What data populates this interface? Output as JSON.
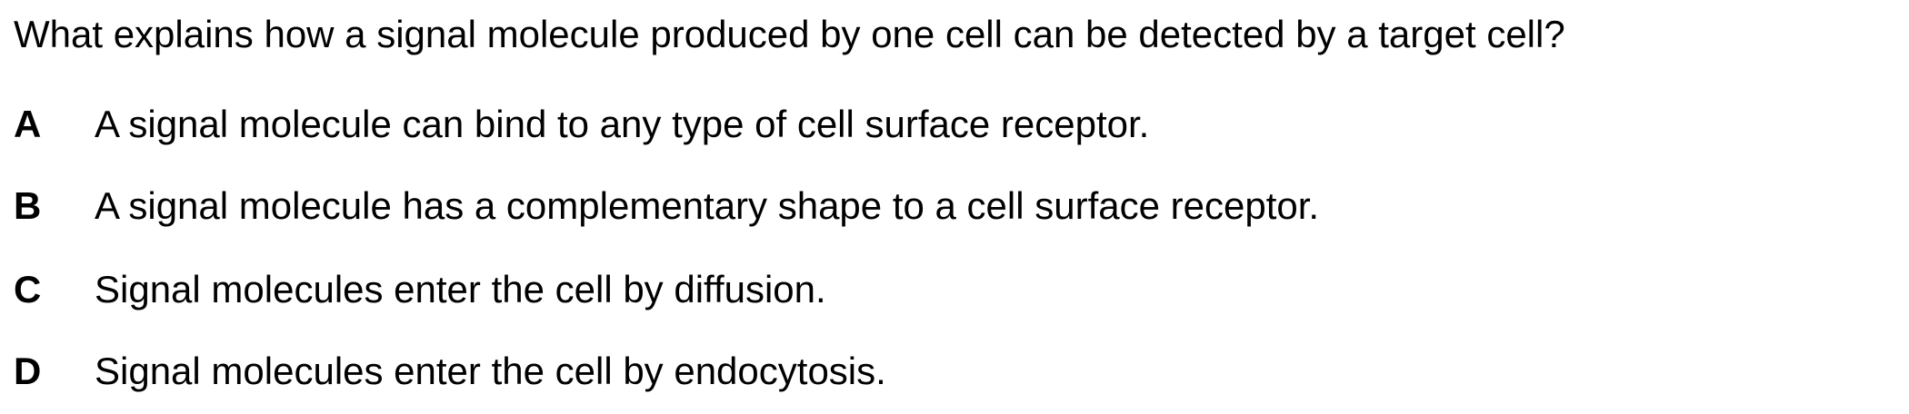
{
  "question": "What explains how a signal molecule produced by one cell can be detected by a target cell?",
  "options": [
    {
      "letter": "A",
      "text": "A signal molecule can bind to any type of cell surface receptor."
    },
    {
      "letter": "B",
      "text": "A signal molecule has a complementary shape to a cell surface receptor."
    },
    {
      "letter": "C",
      "text": "Signal molecules enter the cell by diffusion."
    },
    {
      "letter": "D",
      "text": "Signal molecules enter the cell by endocytosis."
    }
  ]
}
